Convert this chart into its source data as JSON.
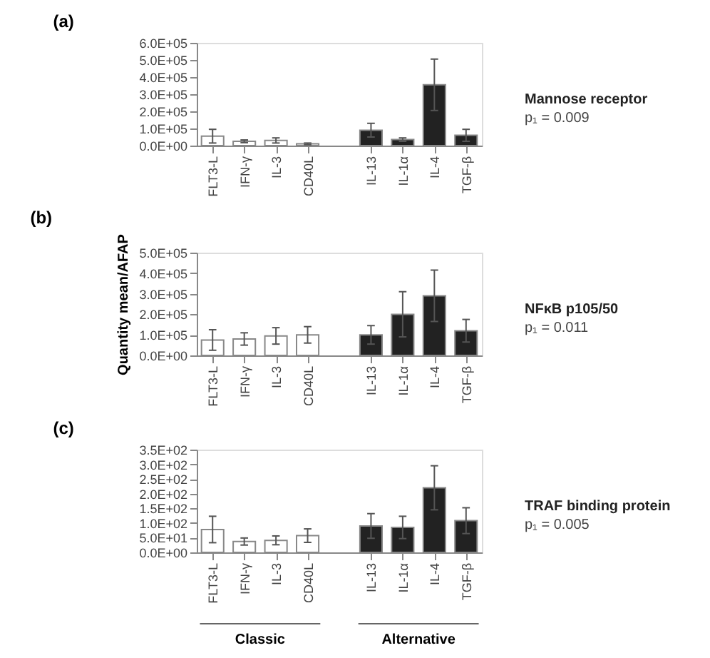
{
  "chart_data": [
    {
      "type": "bar",
      "title": "(a)",
      "categories": [
        "FLT3-L",
        "IFN-γ",
        "IL-3",
        "CD40L",
        null,
        "IL-13",
        "IL-1α",
        "IL-4",
        "TGF-β"
      ],
      "values": [
        55000,
        25000,
        30000,
        10000,
        null,
        90000,
        35000,
        355000,
        60000
      ],
      "errors": [
        40000,
        8000,
        15000,
        5000,
        null,
        40000,
        10000,
        150000,
        35000
      ],
      "colors": [
        "#ffffff",
        "#ffffff",
        "#ffffff",
        "#ffffff",
        "#ffffff",
        "#222222",
        "#222222",
        "#222222",
        "#222222"
      ],
      "ylim": [
        0,
        600000
      ],
      "yticks": [
        {
          "value": 0,
          "label": "0.0E+00"
        },
        {
          "value": 100000,
          "label": "1.0E+05"
        },
        {
          "value": 200000,
          "label": "2.0E+05"
        },
        {
          "value": 300000,
          "label": "3.0E+05"
        },
        {
          "value": 400000,
          "label": "4.0E+05"
        },
        {
          "value": 500000,
          "label": "5.0E+05"
        },
        {
          "value": 600000,
          "label": "6.0E+05"
        }
      ],
      "annotations": [
        "Mannose receptor",
        "p₁ = 0.009"
      ],
      "grid": false
    },
    {
      "type": "bar",
      "title": "(b)",
      "ylabel": "Quantity mean/AFAP",
      "categories": [
        "FLT3-L",
        "IFN-γ",
        "IL-3",
        "CD40L",
        null,
        "IL-13",
        "IL-1α",
        "IL-4",
        "TGF-β"
      ],
      "values": [
        75000,
        80000,
        95000,
        100000,
        null,
        100000,
        200000,
        290000,
        120000
      ],
      "errors": [
        50000,
        30000,
        40000,
        40000,
        null,
        45000,
        110000,
        125000,
        55000
      ],
      "colors": [
        "#ffffff",
        "#ffffff",
        "#ffffff",
        "#ffffff",
        "#ffffff",
        "#222222",
        "#222222",
        "#222222",
        "#222222"
      ],
      "ylim": [
        0,
        500000
      ],
      "yticks": [
        {
          "value": 0,
          "label": "0.0E+00"
        },
        {
          "value": 100000,
          "label": "1.0E+05"
        },
        {
          "value": 200000,
          "label": "2.0E+05"
        },
        {
          "value": 300000,
          "label": "3.0E+05"
        },
        {
          "value": 400000,
          "label": "4.0E+05"
        },
        {
          "value": 500000,
          "label": "5.0E+05"
        }
      ],
      "annotations": [
        "NFκB p105/50",
        "p₁ = 0.011"
      ],
      "grid": false
    },
    {
      "type": "bar",
      "title": "(c)",
      "categories": [
        "FLT3-L",
        "IFN-γ",
        "IL-3",
        "CD40L",
        null,
        "IL-13",
        "IL-1α",
        "IL-4",
        "TGF-β"
      ],
      "values": [
        78,
        37,
        41,
        57,
        null,
        90,
        85,
        220,
        108
      ],
      "errors": [
        45,
        12,
        15,
        23,
        null,
        42,
        38,
        75,
        44
      ],
      "colors": [
        "#ffffff",
        "#ffffff",
        "#ffffff",
        "#ffffff",
        "#ffffff",
        "#222222",
        "#222222",
        "#222222",
        "#222222"
      ],
      "ylim": [
        0,
        350
      ],
      "yticks": [
        {
          "value": 0,
          "label": "0.0E+00"
        },
        {
          "value": 50,
          "label": "5.0E+01"
        },
        {
          "value": 100,
          "label": "1.0E+02"
        },
        {
          "value": 150,
          "label": "1.5E+02"
        },
        {
          "value": 200,
          "label": "2.0E+02"
        },
        {
          "value": 250,
          "label": "2.5E+02"
        },
        {
          "value": 300,
          "label": "3.0E+02"
        },
        {
          "value": 350,
          "label": "3.5E+02"
        }
      ],
      "annotations": [
        "TRAF binding protein",
        "p₁ = 0.005",
        "Classic",
        "Alternative"
      ],
      "grid": false
    }
  ]
}
